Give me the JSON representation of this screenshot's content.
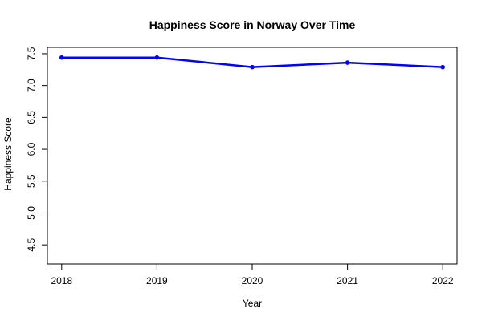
{
  "chart_data": {
    "type": "line",
    "title": "Happiness Score in Norway Over Time",
    "xlabel": "Year",
    "ylabel": "Happiness Score",
    "x": [
      2018,
      2019,
      2020,
      2021,
      2022
    ],
    "series": [
      {
        "values": [
          7.44,
          7.44,
          7.29,
          7.36,
          7.29
        ]
      }
    ],
    "ylim": [
      4.2,
      7.6
    ],
    "xlim": [
      2017.85,
      2022.15
    ],
    "yticks": [
      4.5,
      5.0,
      5.5,
      6.0,
      6.5,
      7.0,
      7.5
    ],
    "ytick_labels": [
      "4.5",
      "5.0",
      "5.5",
      "6.0",
      "6.5",
      "7.0",
      "7.5"
    ],
    "xticks": [
      2018,
      2019,
      2020,
      2021,
      2022
    ],
    "xtick_labels": [
      "2018",
      "2019",
      "2020",
      "2021",
      "2022"
    ],
    "grid": false,
    "legend": "none",
    "colors": {
      "line": "#0000ff",
      "axis": "#000000"
    }
  }
}
